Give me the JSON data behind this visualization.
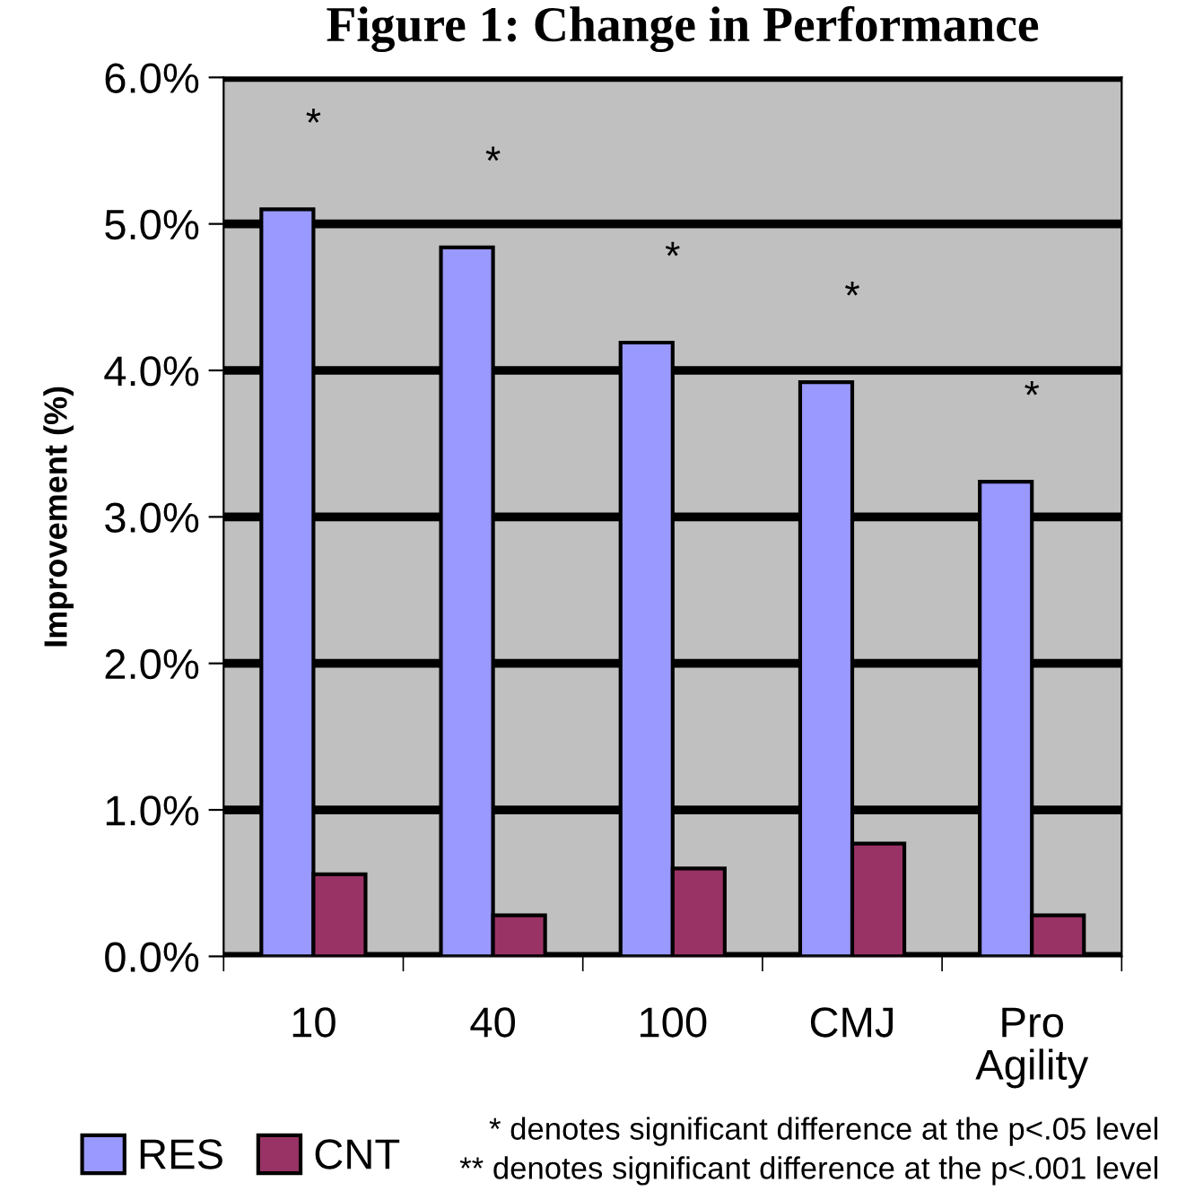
{
  "chart_data": {
    "type": "bar",
    "title": "Figure 1: Change in Performance",
    "ylabel": "Improvement (%)",
    "categories": [
      "10",
      "40",
      "100",
      "CMJ",
      "Pro\nAgility"
    ],
    "series": [
      {
        "name": "RES",
        "color": "#9999ff",
        "values": [
          5.1,
          4.84,
          4.19,
          3.92,
          3.24
        ]
      },
      {
        "name": "CNT",
        "color": "#993366",
        "values": [
          0.56,
          0.28,
          0.6,
          0.77,
          0.28
        ]
      }
    ],
    "ylim": [
      0,
      6
    ],
    "yticks": [
      {
        "value": 0,
        "label": "0.0%"
      },
      {
        "value": 1,
        "label": "1.0%"
      },
      {
        "value": 2,
        "label": "2.0%"
      },
      {
        "value": 3,
        "label": "3.0%"
      },
      {
        "value": 4,
        "label": "4.0%"
      },
      {
        "value": 5,
        "label": "5.0%"
      },
      {
        "value": 6,
        "label": "6.0%"
      }
    ],
    "grid": "y",
    "legend": "bottom left",
    "annotations": [
      "*",
      "*",
      "*",
      "*",
      "*",
      "* denotes significant difference at the p<.05 level",
      "** denotes significant difference at the p<.001 level"
    ]
  }
}
